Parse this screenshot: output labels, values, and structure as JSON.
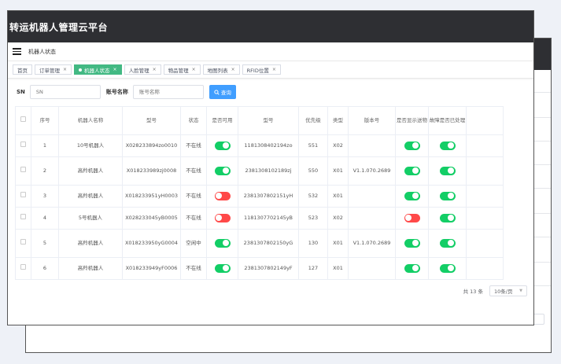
{
  "app_title": "转运机器人管理云平台",
  "breadcrumb": "机器人状态",
  "tabs": [
    {
      "label": "首页",
      "active": false
    },
    {
      "label": "订单管理",
      "active": false
    },
    {
      "label": "机器人状态",
      "active": true
    },
    {
      "label": "人脸管理",
      "active": false
    },
    {
      "label": "物品管理",
      "active": false
    },
    {
      "label": "地图列表",
      "active": false
    },
    {
      "label": "RFID位置",
      "active": false
    }
  ],
  "filters": {
    "sn_label": "SN",
    "sn_placeholder": "SN",
    "name_label": "账号名称",
    "name_placeholder": "账号名称",
    "search_label": "查询"
  },
  "table": {
    "headers": [
      "序号",
      "机器人名称",
      "型号",
      "状态",
      "是否可用",
      "型号",
      "优先级",
      "类型",
      "版本号",
      "是否显示送物",
      "故障是否已处理"
    ],
    "rows": [
      {
        "index": "1",
        "name": "10号机器人",
        "model": "X028233894zo0010",
        "status": "不在线",
        "available": true,
        "model2": "1181308402194zo",
        "priority": "551",
        "type": "X02",
        "version": "",
        "show_delivery": true,
        "fault_handled": true
      },
      {
        "index": "2",
        "name": "高羚机器人",
        "model": "X018233989zj0008",
        "status": "不在线",
        "available": true,
        "model2": "2381308102189zj",
        "priority": "550",
        "type": "X01",
        "version": "V1.1.070.2689",
        "show_delivery": true,
        "fault_handled": true
      },
      {
        "index": "3",
        "name": "高羚机器人",
        "model": "X018233951yH0003",
        "status": "不在线",
        "available": false,
        "model2": "2381307802151yH",
        "priority": "532",
        "type": "X01",
        "version": "",
        "show_delivery": true,
        "fault_handled": true
      },
      {
        "index": "4",
        "name": "5号机器人",
        "model": "X028233045yB0005",
        "status": "不在线",
        "available": false,
        "model2": "1181307702145yB",
        "priority": "523",
        "type": "X02",
        "version": "",
        "show_delivery": false,
        "fault_handled": true
      },
      {
        "index": "5",
        "name": "高羚机器人",
        "model": "X018233950yG0004",
        "status": "空闲中",
        "available": true,
        "model2": "2381307802150yG",
        "priority": "130",
        "type": "X01",
        "version": "V1.1.070.2689",
        "show_delivery": true,
        "fault_handled": true
      },
      {
        "index": "6",
        "name": "高羚机器人",
        "model": "X018233949yF0006",
        "status": "不在线",
        "available": true,
        "model2": "2381307802149yF",
        "priority": "127",
        "type": "X01",
        "version": "",
        "show_delivery": true,
        "fault_handled": true
      }
    ]
  },
  "pagination": {
    "total_text": "共 13 条",
    "page_size": "10条/页"
  },
  "colors": {
    "header_bg": "#2e2f33",
    "active_tag": "#42b983",
    "primary_button": "#409eff",
    "toggle_on": "#13ce66",
    "toggle_off": "#ff4949"
  }
}
